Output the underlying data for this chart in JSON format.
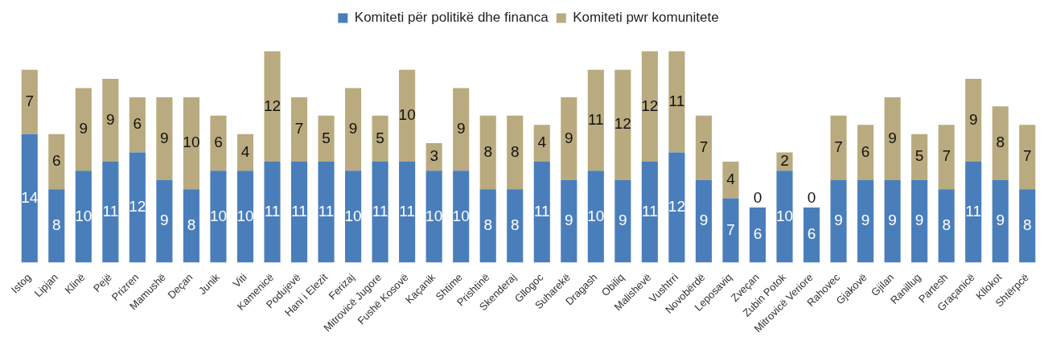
{
  "chart_data": {
    "type": "bar",
    "stacked": true,
    "data_labels": true,
    "legend": "top",
    "grid": false,
    "tick_labels": "x",
    "categories": [
      "Istog",
      "Lipjan",
      "Klinë",
      "Pejë",
      "Prizren",
      "Mamushë",
      "Deçan",
      "Junik",
      "Viti",
      "Kamenicë",
      "Podujevë",
      "Hani i Elezit",
      "Ferizaj",
      "Mitrovicë Jugore",
      "Fushë Kosovë",
      "Kaçanik",
      "Shtime",
      "Prishtinë",
      "Skenderaj",
      "Gllogoc",
      "Suharekë",
      "Dragash",
      "Obiliq",
      "Malishevë",
      "Vushtrri",
      "Novobërdë",
      "Leposaviq",
      "Zveçan",
      "Zubin Potok",
      "Mitrovicë Veriore",
      "Rahovec",
      "Gjakovë",
      "Gjilan",
      "Ranillug",
      "Partesh",
      "Graçanicë",
      "Kllokot",
      "Shtërpcë"
    ],
    "series": [
      {
        "name": "Komiteti për politikë dhe financa",
        "color": "#4a7ebb",
        "values": [
          14,
          8,
          10,
          11,
          12,
          9,
          8,
          10,
          10,
          11,
          11,
          11,
          10,
          11,
          11,
          10,
          10,
          8,
          8,
          11,
          9,
          10,
          9,
          11,
          12,
          9,
          7,
          6,
          10,
          6,
          9,
          9,
          9,
          9,
          8,
          11,
          9,
          8
        ]
      },
      {
        "name": "Komiteti pwr komunitete",
        "color": "#b9ab7f",
        "values": [
          7,
          6,
          9,
          9,
          6,
          9,
          10,
          6,
          4,
          12,
          7,
          5,
          9,
          5,
          10,
          3,
          9,
          8,
          8,
          4,
          9,
          11,
          12,
          12,
          11,
          7,
          4,
          0,
          2,
          0,
          7,
          6,
          9,
          5,
          7,
          9,
          8,
          7
        ]
      }
    ]
  }
}
